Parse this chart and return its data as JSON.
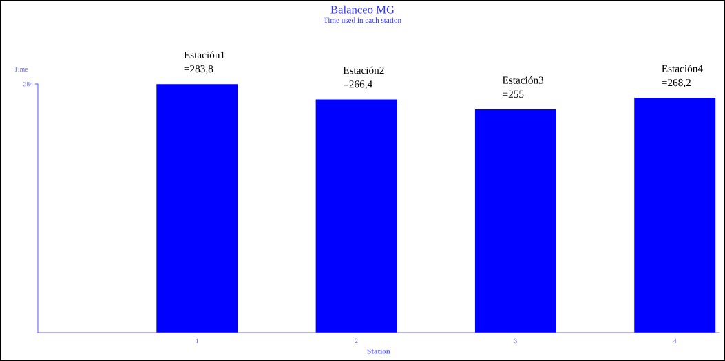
{
  "chart_data": {
    "type": "bar",
    "title": "Balanceo MG",
    "subtitle": "Time used in each station",
    "xlabel": "Station",
    "ylabel": "Time",
    "categories": [
      "1",
      "2",
      "3",
      "4"
    ],
    "values": [
      283.8,
      266.4,
      255,
      268.2
    ],
    "value_labels": [
      "Estación1\n=283,8",
      "Estación2\n=266,4",
      "Estación3\n=255",
      "Estación4\n=268,2"
    ],
    "color": "#0000ff",
    "ylim": [
      0,
      284
    ],
    "yticks": [
      284
    ],
    "grid": false,
    "legend": false
  }
}
